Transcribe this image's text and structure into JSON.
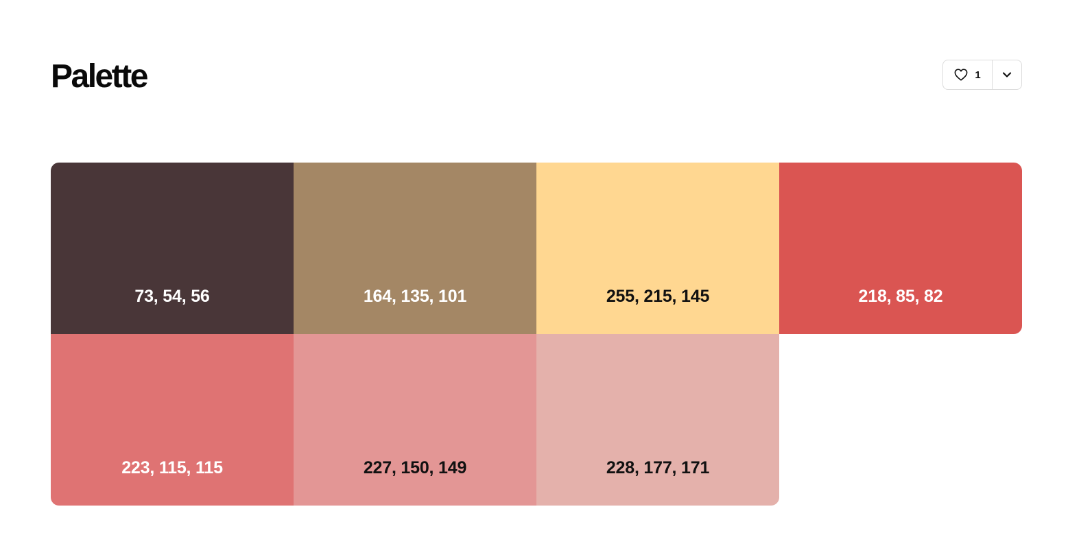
{
  "header": {
    "title": "Palette",
    "like_count": "1",
    "like_icon": "heart-icon",
    "menu_icon": "chevron-down-icon"
  },
  "swatches": [
    {
      "label": "73, 54, 56",
      "color": "#493638",
      "text_color": "#ffffff"
    },
    {
      "label": "164, 135, 101",
      "color": "#a48765",
      "text_color": "#ffffff"
    },
    {
      "label": "255, 215, 145",
      "color": "#ffd791",
      "text_color": "#111111"
    },
    {
      "label": "218, 85, 82",
      "color": "#da5552",
      "text_color": "#ffffff"
    },
    {
      "label": "223, 115, 115",
      "color": "#df7373",
      "text_color": "#ffffff"
    },
    {
      "label": "227, 150, 149",
      "color": "#e39695",
      "text_color": "#111111"
    },
    {
      "label": "228, 177, 171",
      "color": "#e4b1ab",
      "text_color": "#111111"
    }
  ]
}
